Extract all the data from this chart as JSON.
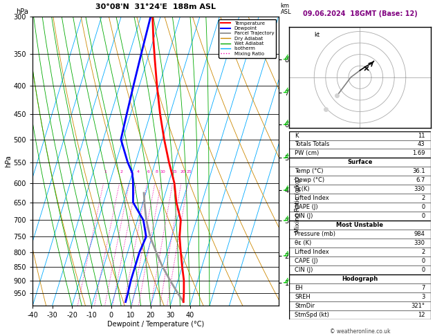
{
  "title_left": "30°08'N  31°24'E  188m ASL",
  "title_right": "09.06.2024  18GMT (Base: 12)",
  "xlabel": "Dewpoint / Temperature (°C)",
  "ylabel_left": "hPa",
  "pressure_levels": [
    300,
    350,
    400,
    450,
    500,
    550,
    600,
    650,
    700,
    750,
    800,
    850,
    900,
    950
  ],
  "pressure_ticks": [
    300,
    350,
    400,
    450,
    500,
    550,
    600,
    650,
    700,
    750,
    800,
    850,
    900,
    950
  ],
  "km_labels": [
    8,
    7,
    6,
    5,
    4,
    3,
    2,
    1
  ],
  "km_pressures": [
    358,
    411,
    470,
    540,
    618,
    701,
    812,
    908
  ],
  "xmin": -40,
  "xmax": 40,
  "isotherm_color": "#00aaff",
  "dry_adiabat_color": "#cc8800",
  "wet_adiabat_color": "#00aa00",
  "mixing_ratio_color": "#ee00aa",
  "mixing_ratio_values": [
    1,
    2,
    3,
    4,
    6,
    8,
    10,
    15,
    20,
    25
  ],
  "temp_profile_p": [
    300,
    330,
    360,
    400,
    450,
    500,
    550,
    600,
    650,
    700,
    750,
    800,
    850,
    900,
    950,
    984
  ],
  "temp_profile_t": [
    -24,
    -20,
    -16,
    -11,
    -5,
    1,
    7,
    13,
    17,
    22,
    24,
    27,
    30,
    33,
    35,
    36.1
  ],
  "dewp_profile_p": [
    300,
    350,
    400,
    450,
    500,
    550,
    575,
    600,
    650,
    700,
    750,
    800,
    850,
    900,
    950,
    984
  ],
  "dewp_profile_t": [
    -25,
    -24,
    -23,
    -22,
    -21,
    -14,
    -10,
    -8,
    -5,
    3,
    7,
    6,
    6,
    6,
    6.5,
    6.7
  ],
  "parcel_profile_p": [
    984,
    950,
    900,
    850,
    800,
    750,
    700,
    660,
    625
  ],
  "parcel_profile_t": [
    36.1,
    32,
    26,
    20,
    14.5,
    9,
    4.5,
    1.5,
    -1
  ],
  "temp_color": "#ff0000",
  "dewp_color": "#0000ff",
  "parcel_color": "#999999",
  "background_color": "#ffffff",
  "stats": {
    "K": 11,
    "Totals_Totals": 43,
    "PW_cm": 1.69,
    "Surface_Temp": 36.1,
    "Surface_Dewp": 6.7,
    "Surface_ThetaE": 330,
    "Surface_LI": 2,
    "Surface_CAPE": 0,
    "Surface_CIN": 0,
    "MU_Pressure": 984,
    "MU_ThetaE": 330,
    "MU_LI": 2,
    "MU_CAPE": 0,
    "MU_CIN": 0,
    "EH": 7,
    "SREH": 3,
    "StmDir": 321,
    "StmSpd_kt": 12
  }
}
